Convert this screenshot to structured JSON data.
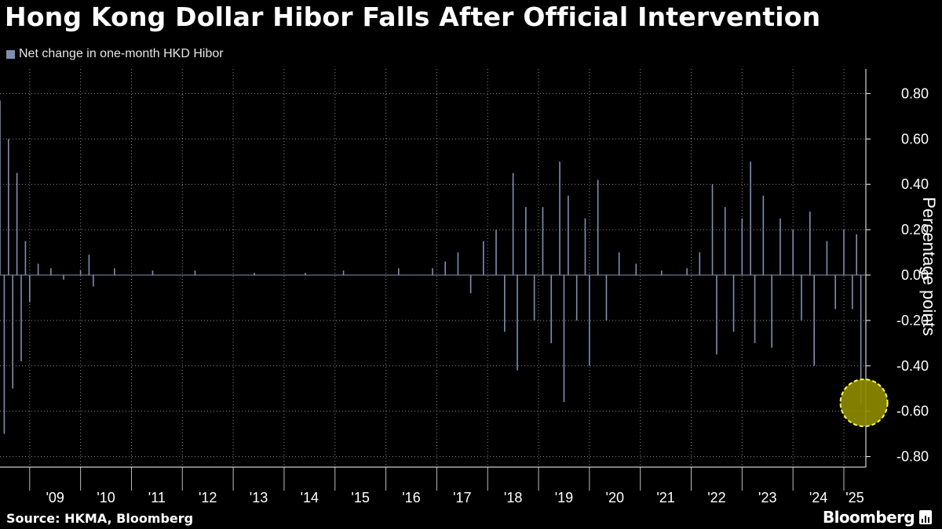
{
  "header": {
    "title": "Hong Kong Dollar Hibor Falls After Official Intervention"
  },
  "footer": {
    "source": "Source: HKMA, Bloomberg",
    "brand": "Bloomberg"
  },
  "colors": {
    "background": "#000000",
    "series": "#7f8fb3",
    "grid": "#8a8a8a",
    "highlight_fill": "#8f8c00",
    "highlight_stroke": "#ffff33"
  },
  "chart_data": {
    "type": "bar",
    "title": "Hong Kong Dollar Hibor Falls After Official Intervention",
    "ylabel": "Percentage points",
    "ylim": [
      -0.85,
      0.9
    ],
    "y_axis_side": "right",
    "y_ticks": [
      0.8,
      0.6,
      0.4,
      0.2,
      0.0,
      -0.2,
      -0.4,
      -0.6,
      -0.8
    ],
    "y_tick_labels": [
      "0.80",
      "0.60",
      "0.40",
      "0.20",
      "0.00",
      "-0.20",
      "-0.40",
      "-0.60",
      "-0.80"
    ],
    "x_range": [
      "2008-06",
      "2025-06"
    ],
    "x_tick_labels": [
      "'09",
      "'10",
      "'11",
      "'12",
      "'13",
      "'14",
      "'15",
      "'16",
      "'17",
      "'18",
      "'19",
      "'20",
      "'21",
      "'22",
      "'23",
      "'24",
      "'25"
    ],
    "grid": true,
    "legend_position": "top-left",
    "series": [
      {
        "name": "Net change in one-month HKD Hibor",
        "note": "daily net change; sampled approximation of the plotted spikes",
        "points": [
          [
            "2008-06",
            0.77
          ],
          [
            "2008-07",
            -0.7
          ],
          [
            "2008-08",
            0.6
          ],
          [
            "2008-09",
            -0.5
          ],
          [
            "2008-10",
            0.45
          ],
          [
            "2008-11",
            -0.38
          ],
          [
            "2008-12",
            0.15
          ],
          [
            "2009-01",
            -0.12
          ],
          [
            "2009-03",
            0.05
          ],
          [
            "2009-06",
            0.03
          ],
          [
            "2009-09",
            -0.02
          ],
          [
            "2010-01",
            0.02
          ],
          [
            "2010-03",
            0.09
          ],
          [
            "2010-04",
            -0.05
          ],
          [
            "2010-09",
            0.03
          ],
          [
            "2011-06",
            0.02
          ],
          [
            "2012-04",
            0.02
          ],
          [
            "2013-06",
            0.01
          ],
          [
            "2014-06",
            0.01
          ],
          [
            "2015-03",
            0.02
          ],
          [
            "2016-04",
            0.03
          ],
          [
            "2016-12",
            0.03
          ],
          [
            "2017-03",
            0.06
          ],
          [
            "2017-06",
            0.1
          ],
          [
            "2017-09",
            -0.08
          ],
          [
            "2017-12",
            0.15
          ],
          [
            "2018-03",
            0.2
          ],
          [
            "2018-05",
            -0.25
          ],
          [
            "2018-07",
            0.45
          ],
          [
            "2018-08",
            -0.42
          ],
          [
            "2018-10",
            0.3
          ],
          [
            "2018-12",
            -0.2
          ],
          [
            "2019-02",
            0.3
          ],
          [
            "2019-04",
            -0.3
          ],
          [
            "2019-06",
            0.5
          ],
          [
            "2019-07",
            -0.56
          ],
          [
            "2019-08",
            0.35
          ],
          [
            "2019-10",
            -0.2
          ],
          [
            "2019-12",
            0.25
          ],
          [
            "2020-01",
            -0.4
          ],
          [
            "2020-03",
            0.42
          ],
          [
            "2020-05",
            -0.2
          ],
          [
            "2020-08",
            0.1
          ],
          [
            "2020-12",
            0.05
          ],
          [
            "2021-06",
            0.02
          ],
          [
            "2021-12",
            0.03
          ],
          [
            "2022-03",
            0.1
          ],
          [
            "2022-06",
            0.4
          ],
          [
            "2022-07",
            -0.35
          ],
          [
            "2022-09",
            0.3
          ],
          [
            "2022-11",
            -0.25
          ],
          [
            "2023-01",
            0.25
          ],
          [
            "2023-03",
            0.5
          ],
          [
            "2023-04",
            -0.3
          ],
          [
            "2023-06",
            0.35
          ],
          [
            "2023-08",
            -0.32
          ],
          [
            "2023-10",
            0.25
          ],
          [
            "2024-01",
            0.2
          ],
          [
            "2024-03",
            -0.2
          ],
          [
            "2024-05",
            0.28
          ],
          [
            "2024-06",
            -0.4
          ],
          [
            "2024-09",
            0.15
          ],
          [
            "2024-11",
            -0.15
          ],
          [
            "2025-01",
            0.2
          ],
          [
            "2025-03",
            -0.15
          ],
          [
            "2025-04",
            0.18
          ],
          [
            "2025-05",
            -0.57
          ]
        ]
      }
    ],
    "highlight": {
      "x": "2025-05",
      "y": -0.57,
      "shape": "circle"
    }
  }
}
